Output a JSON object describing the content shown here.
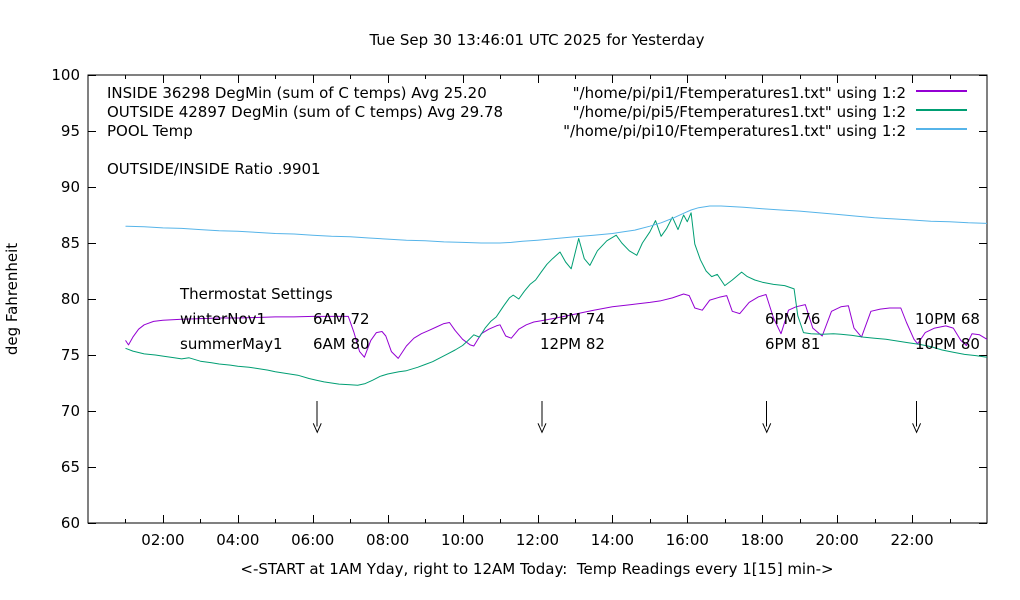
{
  "title": "Tue Sep 30 13:46:01 UTC 2025 for Yesterday",
  "y_axis": {
    "label": "deg Fahrenheit",
    "min": 60,
    "max": 100,
    "ticks": [
      60,
      65,
      70,
      75,
      80,
      85,
      90,
      95,
      100
    ]
  },
  "x_axis": {
    "label": "<-START at 1AM Yday, right to 12AM Today:  Temp Readings every 1[15] min->",
    "min_hours": 0,
    "max_hours": 24,
    "tick_hours": [
      2,
      4,
      6,
      8,
      10,
      12,
      14,
      16,
      18,
      20,
      22
    ],
    "ticks": [
      "02:00",
      "04:00",
      "06:00",
      "08:00",
      "10:00",
      "12:00",
      "14:00",
      "16:00",
      "18:00",
      "20:00",
      "22:00"
    ],
    "minor_tick_every_hours": 1
  },
  "legend": {
    "entries": [
      {
        "label": "INSIDE 36298 DegMin (sum of C temps) Avg 25.20",
        "file": "\"/home/pi/pi1/Ftemperatures1.txt\" using 1:2",
        "color": "#9400d3"
      },
      {
        "label": "OUTSIDE 42897 DegMin (sum of C temps) Avg 29.78",
        "file": "\"/home/pi/pi5/Ftemperatures1.txt\" using 1:2",
        "color": "#009e73"
      },
      {
        "label": "POOL Temp",
        "file": "\"/home/pi/pi10/Ftemperatures1.txt\" using 1:2",
        "color": "#56b4e9"
      }
    ]
  },
  "annotations": {
    "ratio_text": "OUTSIDE/INSIDE Ratio .9901",
    "thermostat": {
      "heading": "Thermostat Settings",
      "rows": [
        {
          "label": "winterNov1",
          "settings": [
            "6AM 72",
            "12PM 74",
            "6PM 76",
            "10PM 68"
          ]
        },
        {
          "label": "summerMay1",
          "settings": [
            "6AM 80",
            "12PM 82",
            "6PM 81",
            "10PM 80"
          ]
        }
      ]
    }
  },
  "arrows": {
    "hours": [
      6.12,
      12.12,
      18.12,
      22.12
    ],
    "from_f": 70.9,
    "to_f": 68.6,
    "head_f": 68.1
  },
  "chart_data": {
    "type": "line",
    "x_unit": "hours (1AM yesterday to 12AM today)",
    "y_unit": "deg Fahrenheit",
    "xlim": [
      0,
      24
    ],
    "ylim": [
      60,
      100
    ],
    "grid": false,
    "legend_position": "top",
    "series": [
      {
        "name": "INSIDE",
        "color": "#9400d3",
        "points": [
          [
            1,
            76.3
          ],
          [
            1.08,
            75.9
          ],
          [
            1.2,
            76.6
          ],
          [
            1.35,
            77.3
          ],
          [
            1.5,
            77.7
          ],
          [
            1.75,
            78
          ],
          [
            2,
            78.1
          ],
          [
            2.5,
            78.2
          ],
          [
            3,
            78.25
          ],
          [
            3.5,
            78.3
          ],
          [
            4,
            78.3
          ],
          [
            4.5,
            78.35
          ],
          [
            5,
            78.4
          ],
          [
            5.5,
            78.4
          ],
          [
            6,
            78.45
          ],
          [
            6.5,
            78.45
          ],
          [
            6.95,
            78.45
          ],
          [
            7.1,
            77
          ],
          [
            7.25,
            75.3
          ],
          [
            7.38,
            74.8
          ],
          [
            7.55,
            76.3
          ],
          [
            7.7,
            77
          ],
          [
            7.85,
            77.1
          ],
          [
            7.95,
            76.7
          ],
          [
            8.1,
            75.3
          ],
          [
            8.28,
            74.7
          ],
          [
            8.5,
            75.8
          ],
          [
            8.7,
            76.5
          ],
          [
            8.9,
            76.9
          ],
          [
            9.1,
            77.2
          ],
          [
            9.3,
            77.5
          ],
          [
            9.5,
            77.8
          ],
          [
            9.65,
            77.9
          ],
          [
            9.8,
            77.2
          ],
          [
            10,
            76.4
          ],
          [
            10.2,
            75.9
          ],
          [
            10.3,
            75.8
          ],
          [
            10.5,
            76.9
          ],
          [
            10.7,
            77.3
          ],
          [
            10.9,
            77.6
          ],
          [
            11,
            77.7
          ],
          [
            11.15,
            76.7
          ],
          [
            11.3,
            76.5
          ],
          [
            11.5,
            77.3
          ],
          [
            11.7,
            77.7
          ],
          [
            11.9,
            77.95
          ],
          [
            12.1,
            78.05
          ],
          [
            12.5,
            78.3
          ],
          [
            13,
            78.65
          ],
          [
            13.5,
            79
          ],
          [
            14,
            79.3
          ],
          [
            14.5,
            79.5
          ],
          [
            15,
            79.7
          ],
          [
            15.3,
            79.85
          ],
          [
            15.6,
            80.1
          ],
          [
            15.9,
            80.45
          ],
          [
            16.05,
            80.3
          ],
          [
            16.2,
            79.2
          ],
          [
            16.4,
            79
          ],
          [
            16.6,
            79.9
          ],
          [
            16.85,
            80.15
          ],
          [
            17.05,
            80.3
          ],
          [
            17.2,
            78.9
          ],
          [
            17.4,
            78.7
          ],
          [
            17.65,
            79.7
          ],
          [
            17.9,
            80.2
          ],
          [
            18.1,
            80.4
          ],
          [
            18.3,
            78.3
          ],
          [
            18.5,
            76.9
          ],
          [
            18.7,
            79
          ],
          [
            18.9,
            79.3
          ],
          [
            19.15,
            79.5
          ],
          [
            19.35,
            77.4
          ],
          [
            19.6,
            76.7
          ],
          [
            19.85,
            78.9
          ],
          [
            20.1,
            79.3
          ],
          [
            20.3,
            79.4
          ],
          [
            20.45,
            77.4
          ],
          [
            20.65,
            76.6
          ],
          [
            20.9,
            78.9
          ],
          [
            21.15,
            79.1
          ],
          [
            21.4,
            79.2
          ],
          [
            21.7,
            79.2
          ],
          [
            21.85,
            77.9
          ],
          [
            22.05,
            76.4
          ],
          [
            22.15,
            76
          ],
          [
            22.35,
            77
          ],
          [
            22.6,
            77.4
          ],
          [
            22.9,
            77.6
          ],
          [
            23.1,
            77.4
          ],
          [
            23.3,
            76.3
          ],
          [
            23.45,
            75.85
          ],
          [
            23.6,
            76.9
          ],
          [
            23.8,
            76.8
          ],
          [
            24,
            76.4
          ]
        ]
      },
      {
        "name": "OUTSIDE",
        "color": "#009e73",
        "points": [
          [
            1,
            75.6
          ],
          [
            1.2,
            75.35
          ],
          [
            1.5,
            75.1
          ],
          [
            1.8,
            75
          ],
          [
            2,
            74.9
          ],
          [
            2.3,
            74.75
          ],
          [
            2.5,
            74.65
          ],
          [
            2.7,
            74.75
          ],
          [
            3,
            74.45
          ],
          [
            3.3,
            74.3
          ],
          [
            3.5,
            74.2
          ],
          [
            3.8,
            74.1
          ],
          [
            4,
            74
          ],
          [
            4.3,
            73.9
          ],
          [
            4.5,
            73.8
          ],
          [
            4.8,
            73.65
          ],
          [
            5,
            73.5
          ],
          [
            5.3,
            73.35
          ],
          [
            5.6,
            73.2
          ],
          [
            5.9,
            72.9
          ],
          [
            6.1,
            72.75
          ],
          [
            6.3,
            72.6
          ],
          [
            6.5,
            72.5
          ],
          [
            6.7,
            72.4
          ],
          [
            7,
            72.35
          ],
          [
            7.2,
            72.3
          ],
          [
            7.4,
            72.45
          ],
          [
            7.6,
            72.75
          ],
          [
            7.8,
            73.1
          ],
          [
            8,
            73.3
          ],
          [
            8.3,
            73.5
          ],
          [
            8.5,
            73.6
          ],
          [
            8.8,
            73.9
          ],
          [
            9,
            74.15
          ],
          [
            9.2,
            74.4
          ],
          [
            9.4,
            74.75
          ],
          [
            9.6,
            75.1
          ],
          [
            9.8,
            75.45
          ],
          [
            10,
            75.85
          ],
          [
            10.15,
            76.3
          ],
          [
            10.3,
            76.8
          ],
          [
            10.45,
            76.6
          ],
          [
            10.6,
            77.4
          ],
          [
            10.75,
            78
          ],
          [
            10.9,
            78.4
          ],
          [
            11,
            78.9
          ],
          [
            11.1,
            79.4
          ],
          [
            11.25,
            80.1
          ],
          [
            11.35,
            80.35
          ],
          [
            11.5,
            80
          ],
          [
            11.65,
            80.7
          ],
          [
            11.8,
            81.3
          ],
          [
            11.95,
            81.7
          ],
          [
            12.1,
            82.4
          ],
          [
            12.25,
            83.1
          ],
          [
            12.4,
            83.6
          ],
          [
            12.6,
            84.2
          ],
          [
            12.75,
            83.3
          ],
          [
            12.9,
            82.7
          ],
          [
            13.1,
            85.4
          ],
          [
            13.25,
            83.6
          ],
          [
            13.4,
            83
          ],
          [
            13.6,
            84.3
          ],
          [
            13.85,
            85.2
          ],
          [
            14.1,
            85.7
          ],
          [
            14.25,
            85
          ],
          [
            14.45,
            84.3
          ],
          [
            14.65,
            83.9
          ],
          [
            14.8,
            85
          ],
          [
            15,
            86
          ],
          [
            15.15,
            87
          ],
          [
            15.3,
            85.6
          ],
          [
            15.45,
            86.3
          ],
          [
            15.6,
            87.3
          ],
          [
            15.75,
            86.2
          ],
          [
            15.9,
            87.5
          ],
          [
            16,
            86.9
          ],
          [
            16.1,
            87.7
          ],
          [
            16.2,
            84.9
          ],
          [
            16.35,
            83.5
          ],
          [
            16.5,
            82.5
          ],
          [
            16.65,
            82
          ],
          [
            16.8,
            82.2
          ],
          [
            17,
            81.2
          ],
          [
            17.2,
            81.7
          ],
          [
            17.45,
            82.4
          ],
          [
            17.6,
            82
          ],
          [
            17.8,
            81.7
          ],
          [
            18,
            81.5
          ],
          [
            18.3,
            81.3
          ],
          [
            18.6,
            81.2
          ],
          [
            18.85,
            80.9
          ],
          [
            18.95,
            78.5
          ],
          [
            19.1,
            77
          ],
          [
            19.3,
            76.9
          ],
          [
            19.6,
            76.85
          ],
          [
            19.9,
            76.9
          ],
          [
            20.1,
            76.85
          ],
          [
            20.4,
            76.75
          ],
          [
            20.7,
            76.6
          ],
          [
            21,
            76.5
          ],
          [
            21.3,
            76.4
          ],
          [
            21.6,
            76.25
          ],
          [
            21.9,
            76.1
          ],
          [
            22.2,
            75.95
          ],
          [
            22.5,
            75.75
          ],
          [
            22.8,
            75.45
          ],
          [
            23.1,
            75.25
          ],
          [
            23.4,
            75.05
          ],
          [
            23.7,
            74.95
          ],
          [
            24,
            74.8
          ]
        ]
      },
      {
        "name": "POOL",
        "color": "#56b4e9",
        "points": [
          [
            1,
            86.5
          ],
          [
            1.5,
            86.45
          ],
          [
            2,
            86.35
          ],
          [
            2.5,
            86.3
          ],
          [
            3,
            86.2
          ],
          [
            3.5,
            86.1
          ],
          [
            4,
            86.05
          ],
          [
            4.5,
            85.95
          ],
          [
            5,
            85.85
          ],
          [
            5.5,
            85.8
          ],
          [
            6,
            85.7
          ],
          [
            6.5,
            85.6
          ],
          [
            7,
            85.55
          ],
          [
            7.5,
            85.45
          ],
          [
            8,
            85.35
          ],
          [
            8.5,
            85.25
          ],
          [
            9,
            85.2
          ],
          [
            9.5,
            85.1
          ],
          [
            10,
            85.05
          ],
          [
            10.5,
            85
          ],
          [
            11,
            85
          ],
          [
            11.3,
            85.05
          ],
          [
            11.6,
            85.15
          ],
          [
            12,
            85.25
          ],
          [
            12.5,
            85.4
          ],
          [
            13,
            85.55
          ],
          [
            13.5,
            85.7
          ],
          [
            14,
            85.85
          ],
          [
            14.3,
            86
          ],
          [
            14.6,
            86.15
          ],
          [
            15,
            86.5
          ],
          [
            15.3,
            86.8
          ],
          [
            15.6,
            87.2
          ],
          [
            15.9,
            87.65
          ],
          [
            16.1,
            87.95
          ],
          [
            16.3,
            88.15
          ],
          [
            16.6,
            88.3
          ],
          [
            16.9,
            88.3
          ],
          [
            17.2,
            88.25
          ],
          [
            17.5,
            88.2
          ],
          [
            18,
            88.05
          ],
          [
            18.5,
            87.95
          ],
          [
            19,
            87.85
          ],
          [
            19.5,
            87.7
          ],
          [
            20,
            87.55
          ],
          [
            20.5,
            87.4
          ],
          [
            21,
            87.25
          ],
          [
            21.5,
            87.15
          ],
          [
            22,
            87.05
          ],
          [
            22.5,
            86.95
          ],
          [
            23,
            86.9
          ],
          [
            23.5,
            86.8
          ],
          [
            24,
            86.75
          ]
        ]
      }
    ]
  }
}
